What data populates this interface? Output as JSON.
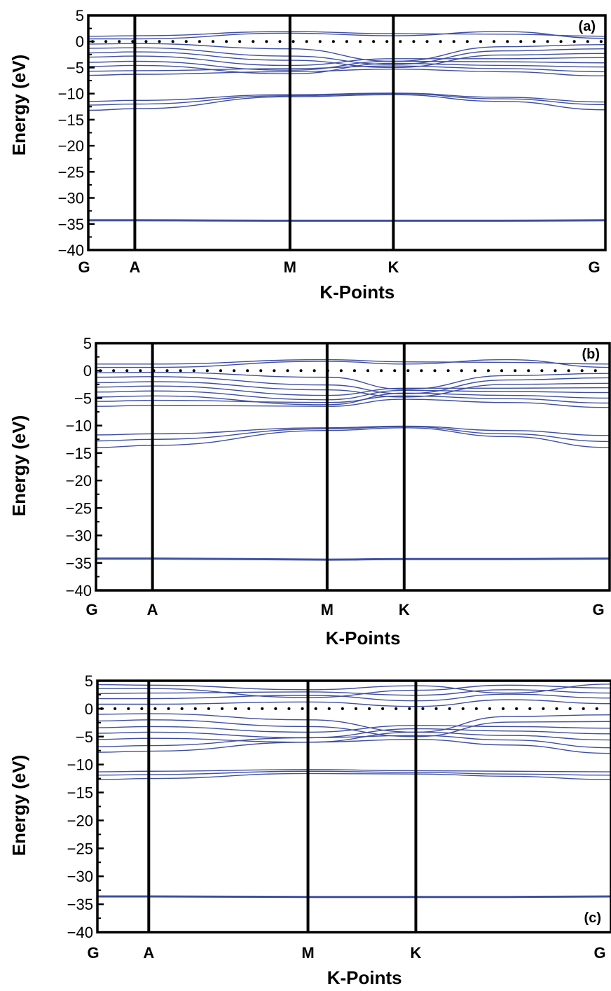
{
  "chart_data": [
    {
      "type": "line",
      "panel_label": "(a)",
      "panel_label_position": "top-right",
      "xlabel": "K-Points",
      "ylabel": "Energy (eV)",
      "ylim": [
        -40,
        5
      ],
      "yticks": [
        5,
        0,
        -5,
        -10,
        -15,
        -20,
        -25,
        -30,
        -35,
        -40
      ],
      "kpoints": [
        {
          "label": "G",
          "x": 0.0
        },
        {
          "label": "A",
          "x": 0.09
        },
        {
          "label": "M",
          "x": 0.39
        },
        {
          "label": "K",
          "x": 0.59
        },
        {
          "label": "G",
          "x": 1.0
        }
      ],
      "fermi_level": 0,
      "series_color": "#3f4fa3",
      "bands": {
        "x": [
          0,
          0.09,
          0.39,
          0.59,
          0.8,
          1.0
        ],
        "y": [
          [
            -34.3,
            -34.3,
            -34.4,
            -34.4,
            -34.4,
            -34.3
          ],
          [
            -13.2,
            -12.9,
            -10.6,
            -10.2,
            -11.5,
            -13.1
          ],
          [
            -12.2,
            -12.0,
            -10.4,
            -10.0,
            -11.0,
            -12.1
          ],
          [
            -11.5,
            -11.3,
            -10.2,
            -9.9,
            -10.7,
            -11.6
          ],
          [
            -6.5,
            -6.3,
            -5.8,
            -5.3,
            -5.8,
            -6.6
          ],
          [
            -5.7,
            -5.6,
            -5.2,
            -4.7,
            -5.2,
            -5.8
          ],
          [
            -4.8,
            -4.6,
            -6.2,
            -4.2,
            -4.6,
            -4.9
          ],
          [
            -4.0,
            -3.8,
            -5.5,
            -3.8,
            -3.9,
            -4.1
          ],
          [
            -3.0,
            -2.8,
            -4.6,
            -3.3,
            -3.3,
            -3.1
          ],
          [
            -2.2,
            -2.0,
            -3.6,
            -5.0,
            -2.6,
            -2.3
          ],
          [
            -1.3,
            -1.2,
            -2.8,
            -4.4,
            -1.8,
            -1.4
          ],
          [
            -0.5,
            -0.4,
            -1.4,
            -3.8,
            -1.0,
            -0.6
          ],
          [
            0.5,
            0.5,
            1.6,
            1.1,
            1.9,
            0.6
          ],
          [
            1.0,
            1.1,
            1.9,
            1.5,
            1.4,
            1.0
          ]
        ]
      }
    },
    {
      "type": "line",
      "panel_label": "(b)",
      "panel_label_position": "top-right",
      "xlabel": "K-Points",
      "ylabel": "Energy (eV)",
      "ylim": [
        -40,
        5
      ],
      "yticks": [
        5,
        0,
        -5,
        -10,
        -15,
        -20,
        -25,
        -30,
        -35,
        -40
      ],
      "kpoints": [
        {
          "label": "G",
          "x": 0.0
        },
        {
          "label": "A",
          "x": 0.11
        },
        {
          "label": "M",
          "x": 0.45
        },
        {
          "label": "K",
          "x": 0.6
        },
        {
          "label": "G",
          "x": 1.0
        }
      ],
      "fermi_level": 0,
      "series_color": "#3f4fa3",
      "bands": {
        "x": [
          0,
          0.11,
          0.45,
          0.6,
          0.8,
          1.0
        ],
        "y": [
          [
            -34.2,
            -34.2,
            -34.4,
            -34.3,
            -34.3,
            -34.2
          ],
          [
            -14.0,
            -13.6,
            -10.9,
            -10.4,
            -12.0,
            -14.0
          ],
          [
            -12.8,
            -12.5,
            -10.6,
            -10.2,
            -11.5,
            -12.9
          ],
          [
            -11.7,
            -11.5,
            -10.4,
            -10.1,
            -10.9,
            -11.8
          ],
          [
            -6.5,
            -6.3,
            -6.5,
            -5.2,
            -5.8,
            -6.7
          ],
          [
            -5.6,
            -5.4,
            -5.8,
            -4.6,
            -5.1,
            -5.9
          ],
          [
            -4.8,
            -4.6,
            -6.2,
            -4.1,
            -4.5,
            -5.0
          ],
          [
            -3.9,
            -3.7,
            -5.3,
            -3.6,
            -3.8,
            -4.0
          ],
          [
            -3.0,
            -2.8,
            -4.5,
            -3.2,
            -3.2,
            -3.1
          ],
          [
            -2.2,
            -2.0,
            -3.5,
            -4.8,
            -2.5,
            -2.3
          ],
          [
            -1.2,
            -1.1,
            -2.6,
            -4.2,
            -1.7,
            -1.3
          ],
          [
            -0.4,
            -0.3,
            -1.2,
            -3.4,
            -0.9,
            -0.5
          ],
          [
            0.6,
            0.6,
            1.7,
            1.2,
            2.0,
            0.6
          ],
          [
            1.2,
            1.2,
            2.0,
            1.6,
            1.5,
            1.2
          ]
        ]
      }
    },
    {
      "type": "line",
      "panel_label": "(c)",
      "panel_label_position": "bottom-right",
      "xlabel": "K-Points",
      "ylabel": "Energy (eV)",
      "ylim": [
        -40,
        5
      ],
      "yticks": [
        5,
        0,
        -5,
        -10,
        -15,
        -20,
        -25,
        -30,
        -35,
        -40
      ],
      "kpoints": [
        {
          "label": "G",
          "x": 0.0
        },
        {
          "label": "A",
          "x": 0.1
        },
        {
          "label": "M",
          "x": 0.41
        },
        {
          "label": "K",
          "x": 0.62
        },
        {
          "label": "G",
          "x": 1.0
        }
      ],
      "fermi_level": 0,
      "series_color": "#3f4fa3",
      "bands": {
        "x": [
          0,
          0.1,
          0.41,
          0.62,
          0.8,
          1.0
        ],
        "y": [
          [
            -33.6,
            -33.6,
            -33.7,
            -33.7,
            -33.7,
            -33.6
          ],
          [
            -12.7,
            -12.5,
            -11.6,
            -11.7,
            -12.1,
            -12.7
          ],
          [
            -11.9,
            -11.8,
            -11.2,
            -11.4,
            -11.7,
            -11.9
          ],
          [
            -11.3,
            -11.2,
            -10.9,
            -11.1,
            -11.2,
            -11.3
          ],
          [
            -7.8,
            -7.6,
            -6.0,
            -5.5,
            -6.5,
            -8.0
          ],
          [
            -6.8,
            -6.6,
            -5.2,
            -4.8,
            -5.6,
            -7.0
          ],
          [
            -5.5,
            -5.3,
            -6.0,
            -4.2,
            -4.8,
            -5.6
          ],
          [
            -4.4,
            -4.2,
            -5.2,
            -3.6,
            -4.0,
            -4.5
          ],
          [
            -3.4,
            -3.2,
            -4.2,
            -3.0,
            -3.2,
            -3.5
          ],
          [
            -2.2,
            -2.0,
            -3.2,
            -5.0,
            -2.4,
            -2.3
          ],
          [
            -1.0,
            -0.9,
            -2.0,
            -4.2,
            -1.4,
            -1.1
          ],
          [
            0.8,
            0.8,
            1.2,
            0.4,
            1.6,
            0.9
          ],
          [
            1.8,
            1.8,
            2.4,
            1.4,
            2.6,
            1.9
          ],
          [
            2.7,
            2.8,
            3.0,
            2.4,
            3.4,
            2.8
          ],
          [
            3.6,
            3.6,
            2.0,
            3.3,
            4.2,
            3.7
          ],
          [
            4.3,
            4.2,
            3.4,
            4.1,
            2.8,
            4.4
          ]
        ]
      }
    }
  ]
}
